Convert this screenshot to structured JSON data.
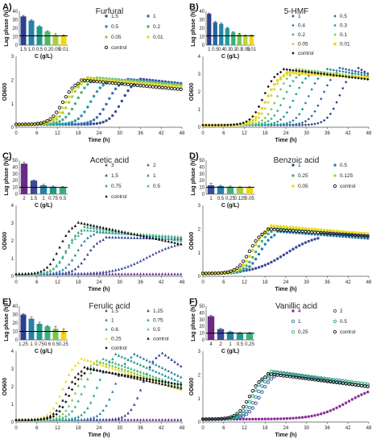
{
  "chart_data": [
    {
      "id": "A",
      "panel_label": "A)",
      "title": "Furfural",
      "type": "composite",
      "bar": {
        "type": "bar",
        "ylabel": "Lag phase (h)",
        "xlabel": "C (g/L)",
        "ylim": [
          0,
          40
        ],
        "yticks": [
          0,
          10,
          20,
          30,
          40
        ],
        "categories": [
          "1.5",
          "1.0",
          "0.5",
          "0.2",
          "0.05",
          "0.01"
        ],
        "values": [
          34,
          29,
          22,
          16,
          12,
          11
        ],
        "errors": [
          1.2,
          1.0,
          1.0,
          1.0,
          1.5,
          1.0
        ],
        "colors": [
          "#2e3f8f",
          "#2a7fa6",
          "#1f9a8a",
          "#52b85f",
          "#a8cf3a",
          "#f0d80f"
        ],
        "control_line": 11
      },
      "line": {
        "type": "line",
        "ylabel": "OD600",
        "xlabel": "Time (h)",
        "xlim": [
          0,
          48
        ],
        "ylim": [
          0,
          3
        ],
        "xticks": [
          0,
          6,
          12,
          18,
          24,
          30,
          36,
          42,
          48
        ],
        "yticks": [
          0,
          1,
          2,
          3
        ],
        "series": [
          {
            "name": "1.5",
            "color": "#3b4a9a",
            "lag": 27,
            "plateau": 2.05,
            "fall": 1.85,
            "marker": "o"
          },
          {
            "name": "1",
            "color": "#3470b0",
            "lag": 23,
            "plateau": 2.05,
            "fall": 1.8,
            "marker": "o"
          },
          {
            "name": "0.5",
            "color": "#2496a6",
            "lag": 18,
            "plateau": 2.0,
            "fall": 1.75,
            "marker": "o"
          },
          {
            "name": "0.2",
            "color": "#46b07a",
            "lag": 14,
            "plateau": 2.1,
            "fall": 1.8,
            "marker": "o"
          },
          {
            "name": "0.05",
            "color": "#9ccd45",
            "lag": 12,
            "plateau": 2.1,
            "fall": 1.75,
            "marker": "o"
          },
          {
            "name": "0.01",
            "color": "#ecd61a",
            "lag": 11,
            "plateau": 2.05,
            "fall": 1.7,
            "marker": "o"
          },
          {
            "name": "control",
            "color": "#111111",
            "lag": 10,
            "plateau": 2.0,
            "fall": 1.6,
            "marker": "o",
            "hollow": true
          }
        ]
      }
    },
    {
      "id": "B",
      "panel_label": "B)",
      "title": "5-HMF",
      "type": "composite",
      "bar": {
        "type": "bar",
        "ylabel": "Lag phase (h)",
        "xlabel": "C (g/L)",
        "ylim": [
          0,
          40
        ],
        "yticks": [
          0,
          10,
          20,
          30,
          40
        ],
        "categories": [
          "1",
          "0.5",
          "0.4",
          "0.3",
          "0.2",
          "0.1",
          "0.05",
          "0.01"
        ],
        "values": [
          37,
          27,
          25,
          20,
          15,
          13,
          11,
          11
        ],
        "errors": [
          1,
          1,
          1,
          1,
          1,
          1,
          1,
          1
        ],
        "colors": [
          "#2c4088",
          "#27649e",
          "#2585a6",
          "#1f9c95",
          "#3aaf7a",
          "#7cc451",
          "#bcd436",
          "#ecd61a"
        ],
        "control_line": 11
      },
      "line": {
        "type": "line",
        "ylabel": "OD600",
        "xlabel": "Time (h)",
        "xlim": [
          0,
          48
        ],
        "ylim": [
          0,
          4
        ],
        "xticks": [
          0,
          6,
          12,
          18,
          24,
          30,
          36,
          42,
          48
        ],
        "yticks": [
          0,
          1,
          2,
          3,
          4
        ],
        "series": [
          {
            "name": "1",
            "color": "#2c4088",
            "lag": 36,
            "plateau": 3.4,
            "fall": 3.0,
            "marker": "d"
          },
          {
            "name": "0.5",
            "color": "#27649e",
            "lag": 31,
            "plateau": 3.35,
            "fall": 3.0,
            "marker": "d"
          },
          {
            "name": "0.4",
            "color": "#2585a6",
            "lag": 27,
            "plateau": 3.3,
            "fall": 2.9,
            "marker": "d"
          },
          {
            "name": "0.3",
            "color": "#1f9c95",
            "lag": 23,
            "plateau": 3.2,
            "fall": 2.7,
            "marker": "d"
          },
          {
            "name": "0.2",
            "color": "#3aaf7a",
            "lag": 20,
            "plateau": 3.2,
            "fall": 2.7,
            "marker": "d"
          },
          {
            "name": "0.1",
            "color": "#7cc451",
            "lag": 18,
            "plateau": 3.3,
            "fall": 2.8,
            "marker": "d"
          },
          {
            "name": "0.05",
            "color": "#bcd436",
            "lag": 16,
            "plateau": 3.2,
            "fall": 2.8,
            "marker": "d"
          },
          {
            "name": "0.01",
            "color": "#ecd61a",
            "lag": 15,
            "plateau": 3.1,
            "fall": 2.8,
            "marker": "s"
          },
          {
            "name": "control",
            "color": "#111111",
            "lag": 14,
            "plateau": 3.3,
            "fall": 2.7,
            "marker": "d"
          }
        ]
      }
    },
    {
      "id": "C",
      "panel_label": "C)",
      "title": "Acetic acid",
      "type": "composite",
      "bar": {
        "type": "bar",
        "ylabel": "Lag phase (h)",
        "xlabel": "C (g/L)",
        "ylim": [
          0,
          50
        ],
        "yticks": [
          0,
          10,
          20,
          30,
          40,
          50
        ],
        "categories": [
          "2",
          "1.5",
          "1",
          "0.75",
          "0.5"
        ],
        "values": [
          45,
          20,
          13,
          11,
          10
        ],
        "errors": [
          2,
          1,
          1.5,
          1,
          1
        ],
        "colors": [
          "#6b2a86",
          "#3b4a9a",
          "#2a7fa6",
          "#1f9a8a",
          "#3aaf7a"
        ],
        "control_line": 10
      },
      "line": {
        "type": "line",
        "ylabel": "OD600",
        "xlabel": "Time (h)",
        "xlim": [
          0,
          48
        ],
        "ylim": [
          0,
          4
        ],
        "xticks": [
          0,
          6,
          12,
          18,
          24,
          30,
          36,
          42,
          48
        ],
        "yticks": [
          0,
          1,
          2,
          3,
          4
        ],
        "series": [
          {
            "name": "3",
            "color": "#6b2a86",
            "lag": 60,
            "plateau": 0.2,
            "fall": 0.2,
            "marker": "t"
          },
          {
            "name": "2",
            "color": "#3b4a9a",
            "lag": 30,
            "plateau": 2.0,
            "fall": 2.0,
            "marker": "t",
            "slow": true
          },
          {
            "name": "1.5",
            "color": "#2e3f8f",
            "lag": 17,
            "plateau": 2.2,
            "fall": 2.1,
            "marker": "t"
          },
          {
            "name": "1",
            "color": "#2a7fa6",
            "lag": 14,
            "plateau": 2.5,
            "fall": 2.2,
            "marker": "t"
          },
          {
            "name": "0.75",
            "color": "#1f9a8a",
            "lag": 11,
            "plateau": 2.8,
            "fall": 2.0,
            "marker": "t"
          },
          {
            "name": "0.5",
            "color": "#46b07a",
            "lag": 11,
            "plateau": 2.6,
            "fall": 2.2,
            "marker": "t"
          },
          {
            "name": "control",
            "color": "#111111",
            "lag": 9,
            "plateau": 3.05,
            "fall": 1.8,
            "marker": "t"
          }
        ]
      }
    },
    {
      "id": "D",
      "panel_label": "D)",
      "title": "Benzoic acid",
      "type": "composite",
      "bar": {
        "type": "bar",
        "ylabel": "Lag phase (h)",
        "xlabel": "C (g/L)",
        "ylim": [
          0,
          50
        ],
        "yticks": [
          0,
          5,
          10,
          15,
          20,
          25,
          30,
          35,
          40,
          45,
          50
        ],
        "categories": [
          "1",
          "0.5",
          "0.25",
          "0.125",
          "0.05"
        ],
        "values": [
          13,
          12,
          11,
          10,
          10
        ],
        "errors": [
          3,
          1,
          1,
          1,
          1
        ],
        "colors": [
          "#3b4a9a",
          "#2a7fa6",
          "#46b07a",
          "#a8cf3a",
          "#f0d80f"
        ],
        "control_line": 10
      },
      "line": {
        "type": "line",
        "ylabel": "OD600",
        "xlabel": "Time (h)",
        "xlim": [
          0,
          48
        ],
        "ylim": [
          0,
          3
        ],
        "xticks": [
          0,
          6,
          12,
          18,
          24,
          30,
          36,
          42,
          48
        ],
        "yticks": [
          0,
          1,
          2,
          3
        ],
        "series": [
          {
            "name": "1",
            "color": "#3b4a9a",
            "lag": 16,
            "plateau": 1.8,
            "fall": 1.7,
            "marker": "o",
            "slow": true
          },
          {
            "name": "0.5",
            "color": "#2a7fa6",
            "lag": 13,
            "plateau": 1.9,
            "fall": 1.6,
            "marker": "o"
          },
          {
            "name": "0.25",
            "color": "#46b07a",
            "lag": 12,
            "plateau": 2.05,
            "fall": 1.8,
            "marker": "o"
          },
          {
            "name": "0.125",
            "color": "#a8cf3a",
            "lag": 11,
            "plateau": 2.1,
            "fall": 1.8,
            "marker": "o"
          },
          {
            "name": "0.05",
            "color": "#f0d80f",
            "lag": 11,
            "plateau": 2.15,
            "fall": 1.8,
            "marker": "o"
          },
          {
            "name": "control",
            "color": "#111111",
            "lag": 10,
            "plateau": 2.0,
            "fall": 1.7,
            "marker": "o",
            "hollow": true
          }
        ]
      }
    },
    {
      "id": "E",
      "panel_label": "E)",
      "title": "Ferulic acid",
      "type": "composite",
      "bar": {
        "type": "bar",
        "ylabel": "Lag phase (h)",
        "xlabel": "C (g/L)",
        "ylim": [
          0,
          40
        ],
        "yticks": [
          0,
          5,
          10,
          15,
          20,
          25,
          30,
          35,
          40
        ],
        "categories": [
          "1.25",
          "1",
          "0.75",
          "0.6",
          "0.5",
          "0.25"
        ],
        "values": [
          30,
          25,
          19,
          16,
          13,
          10
        ],
        "errors": [
          1,
          2,
          2,
          1,
          3,
          3
        ],
        "colors": [
          "#2e3f8f",
          "#2a7fa6",
          "#1f9a8a",
          "#3aaf7a",
          "#7cc451",
          "#f0d80f"
        ],
        "control_line": 10
      },
      "line": {
        "type": "line",
        "ylabel": "OD600",
        "xlabel": "Time (h)",
        "xlim": [
          0,
          48
        ],
        "ylim": [
          0,
          4
        ],
        "xticks": [
          0,
          6,
          12,
          18,
          24,
          30,
          36,
          42,
          48
        ],
        "yticks": [
          0,
          1,
          2,
          3,
          4
        ],
        "series": [
          {
            "name": "1.5",
            "color": "#5a2c86",
            "lag": 60,
            "plateau": 0.1,
            "fall": 0.1,
            "marker": "t"
          },
          {
            "name": "1.25",
            "color": "#2e3f8f",
            "lag": 33,
            "plateau": 4.0,
            "fall": 3.1,
            "marker": "t"
          },
          {
            "name": "1",
            "color": "#2a7fa6",
            "lag": 25,
            "plateau": 3.9,
            "fall": 2.5,
            "marker": "t"
          },
          {
            "name": "0.75",
            "color": "#1f9a8a",
            "lag": 20,
            "plateau": 3.85,
            "fall": 2.2,
            "marker": "t"
          },
          {
            "name": "0.6",
            "color": "#3aaf7a",
            "lag": 16,
            "plateau": 3.6,
            "fall": 2.0,
            "marker": "t"
          },
          {
            "name": "0.5",
            "color": "#7cc451",
            "lag": 14,
            "plateau": 3.5,
            "fall": 1.9,
            "marker": "t"
          },
          {
            "name": "0.25",
            "color": "#f0d80f",
            "lag": 10,
            "plateau": 3.6,
            "fall": 1.8,
            "marker": "t"
          },
          {
            "name": "control",
            "color": "#111111",
            "lag": 11,
            "plateau": 3.1,
            "fall": 1.9,
            "marker": "t"
          },
          {
            "name": "control",
            "color": "#111111",
            "lag": 12,
            "plateau": 3.0,
            "fall": 2.1,
            "marker": "d"
          }
        ]
      }
    },
    {
      "id": "F",
      "panel_label": "F)",
      "title": "Vanillic acid",
      "type": "composite",
      "bar": {
        "type": "bar",
        "ylabel": "Lag phase (h)",
        "xlabel": "C (g/L)",
        "ylim": [
          0,
          50
        ],
        "yticks": [
          0,
          10,
          20,
          30,
          40,
          50
        ],
        "categories": [
          "4",
          "2",
          "1",
          "0.5",
          "0.25"
        ],
        "values": [
          35,
          16,
          12,
          10,
          10
        ],
        "errors": [
          1.5,
          1,
          1,
          1,
          1
        ],
        "colors": [
          "#6b2a86",
          "#3b4a9a",
          "#2a7fa6",
          "#1f9a8a",
          "#3aaf7a"
        ],
        "control_line": 10
      },
      "line": {
        "type": "line",
        "ylabel": "OD600",
        "xlabel": "Time (h)",
        "xlim": [
          0,
          48
        ],
        "ylim": [
          0,
          3
        ],
        "xticks": [
          0,
          6,
          12,
          18,
          24,
          30,
          36,
          42,
          48
        ],
        "yticks": [
          0,
          1,
          2,
          3
        ],
        "series": [
          {
            "name": "4",
            "color": "#8a2c9a",
            "lag": 34,
            "plateau": 1.6,
            "fall": 1.45,
            "marker": "o",
            "slow": true
          },
          {
            "name": "2",
            "color": "#3b4a9a",
            "lag": 13,
            "plateau": 2.1,
            "fall": 1.5,
            "marker": "o",
            "hollow": true
          },
          {
            "name": "1",
            "color": "#2a7fa6",
            "lag": 12,
            "plateau": 2.1,
            "fall": 1.5,
            "marker": "o",
            "hollow": true
          },
          {
            "name": "0.5",
            "color": "#1f9a8a",
            "lag": 11,
            "plateau": 2.15,
            "fall": 1.6,
            "marker": "o",
            "hollow": true
          },
          {
            "name": "0.25",
            "color": "#3aaf7a",
            "lag": 11,
            "plateau": 2.15,
            "fall": 1.6,
            "marker": "o",
            "hollow": true
          },
          {
            "name": "control",
            "color": "#111111",
            "lag": 10,
            "plateau": 2.05,
            "fall": 1.5,
            "marker": "o",
            "hollow": true
          }
        ]
      }
    }
  ]
}
